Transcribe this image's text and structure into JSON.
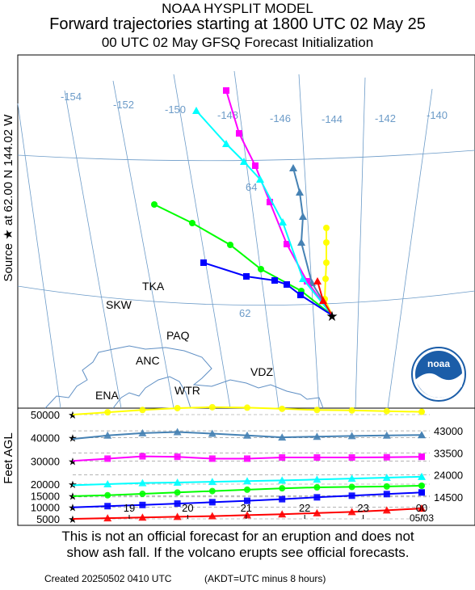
{
  "header": {
    "line1": "NOAA HYSPLIT MODEL",
    "line2": "Forward trajectories starting at 1800 UTC 02 May 25",
    "line3": "00 UTC 02 May     GFSQ  Forecast Initialization"
  },
  "source_label": "Source ★  at   62.00 N  144.02 W",
  "logo_text": "noaa",
  "colors": {
    "yellow": "#ffff00",
    "steelblue": "#4682b4",
    "magenta": "#ff00ff",
    "cyan": "#00ffff",
    "green": "#00ff00",
    "blue": "#0000ff",
    "red": "#ff0000",
    "grid": "#6c9bc8",
    "coast": "#5f8fc4"
  },
  "chart_data": [
    {
      "type": "map",
      "meridian_labels": [
        "-154",
        "-152",
        "-150",
        "-148",
        "-146",
        "-144",
        "-142",
        "-140"
      ],
      "parallel_labels": [
        "64",
        "62"
      ],
      "places": [
        "TKA",
        "SKW",
        "PAQ",
        "ANC",
        "VDZ",
        "WTR",
        "ENA"
      ],
      "trajectories": [
        {
          "name": "50000",
          "color": "yellow"
        },
        {
          "name": "43000",
          "color": "steelblue"
        },
        {
          "name": "33500",
          "color": "magenta"
        },
        {
          "name": "24000",
          "color": "cyan"
        },
        {
          "name": "20000",
          "color": "green"
        },
        {
          "name": "14500",
          "color": "blue"
        },
        {
          "name": "5000",
          "color": "red"
        }
      ]
    },
    {
      "type": "line",
      "ylabel": "Feet AGL",
      "left_tick_labels": [
        "50000",
        "40000",
        "30000",
        "20000",
        "15000",
        "10000",
        "5000"
      ],
      "right_tick_labels": [
        "43000",
        "33500",
        "24000",
        "14500"
      ],
      "x_tick_labels": [
        "19",
        "20",
        "21",
        "22",
        "23",
        "00"
      ],
      "x_sub_label": "05/03",
      "x_time_range_hours": [
        18,
        48
      ],
      "y_range_feet": [
        5000,
        50000
      ],
      "series": [
        {
          "color": "yellow",
          "x_hours": [
            18,
            21,
            24,
            27,
            30,
            33,
            36,
            39,
            42,
            45,
            48
          ],
          "y": [
            50000,
            51000,
            52000,
            52800,
            53200,
            53000,
            52500,
            52000,
            51800,
            51500,
            51200
          ]
        },
        {
          "color": "steelblue",
          "x_hours": [
            18,
            21,
            24,
            27,
            30,
            33,
            36,
            39,
            42,
            45,
            48
          ],
          "y": [
            39500,
            41000,
            42000,
            42500,
            41800,
            41000,
            40200,
            40500,
            40800,
            41000,
            41200
          ]
        },
        {
          "color": "magenta",
          "x_hours": [
            18,
            21,
            24,
            27,
            30,
            33,
            36,
            39,
            42,
            45,
            48
          ],
          "y": [
            30000,
            31000,
            32000,
            31800,
            31000,
            31000,
            31500,
            31500,
            31500,
            31600,
            31800
          ]
        },
        {
          "color": "cyan",
          "x_hours": [
            18,
            21,
            24,
            27,
            30,
            33,
            36,
            39,
            42,
            45,
            48
          ],
          "y": [
            19500,
            20000,
            20500,
            20700,
            21000,
            21300,
            21600,
            22000,
            22400,
            22800,
            23200
          ]
        },
        {
          "color": "green",
          "x_hours": [
            18,
            21,
            24,
            27,
            30,
            33,
            36,
            39,
            42,
            45,
            48
          ],
          "y": [
            14800,
            15200,
            15800,
            16400,
            17000,
            17600,
            18200,
            18600,
            18800,
            19000,
            19300
          ]
        },
        {
          "color": "blue",
          "x_hours": [
            18,
            21,
            24,
            27,
            30,
            33,
            36,
            39,
            42,
            45,
            48
          ],
          "y": [
            10000,
            10500,
            11000,
            11600,
            12200,
            12800,
            13500,
            14300,
            15000,
            15700,
            16400
          ]
        },
        {
          "color": "red",
          "x_hours": [
            18,
            21,
            24,
            27,
            30,
            33,
            36,
            39,
            42,
            45,
            48
          ],
          "y": [
            5000,
            5300,
            5600,
            5900,
            6200,
            6600,
            7000,
            7500,
            8000,
            8700,
            9500
          ]
        }
      ]
    }
  ],
  "note": {
    "line1": "This is not an official forecast for an eruption and does not",
    "line2": "show ash fall. If the volcano erupts see official forecasts."
  },
  "footer": {
    "created": "Created 20250502 0410 UTC",
    "tz": "(AKDT=UTC minus 8 hours)"
  }
}
